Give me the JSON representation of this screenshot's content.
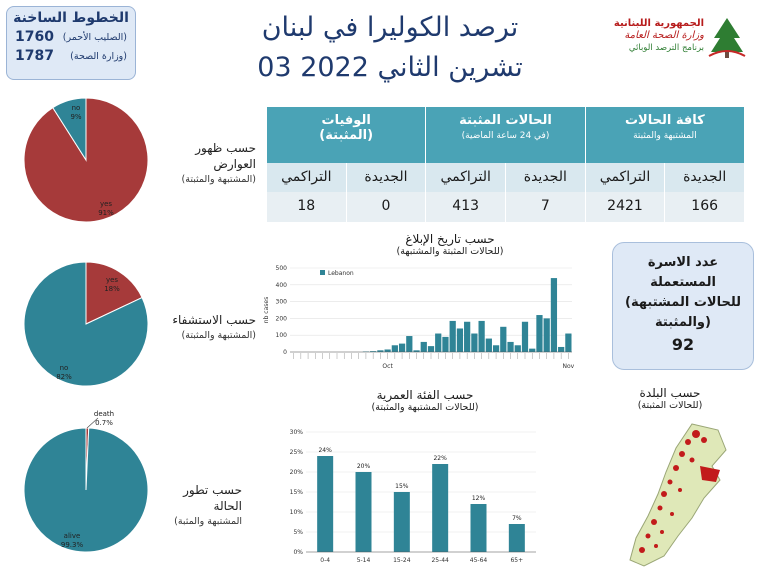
{
  "hotline": {
    "title": "الخطوط الساخنة",
    "lines": [
      {
        "number": "1760",
        "label": "(الصليب الأحمر)"
      },
      {
        "number": "1787",
        "label": "(وزارة الصحة)"
      }
    ]
  },
  "title": {
    "line1": "ترصد الكوليرا في لبنان",
    "line2": "03 تشرين الثاني 2022"
  },
  "logo": {
    "line1": "الجمهورية اللبنانية",
    "line2": "وزارة الصحة العامة",
    "line3": "برنامج الترصد الوبائي"
  },
  "summary": {
    "groups": [
      {
        "title": "كافة الحالات",
        "subtitle": "المشتبهة والمثبتة"
      },
      {
        "title": "الحالات المثبتة",
        "subtitle": "(في 24 ساعة الماضية)"
      },
      {
        "title": "الوفيات",
        "subtitle": "(المثبتة)"
      }
    ],
    "columns": [
      "الجديدة",
      "التراكمي",
      "الجديدة",
      "التراكمي",
      "الجديدة",
      "التراكمي"
    ],
    "values": [
      "166",
      "2421",
      "7",
      "413",
      "0",
      "18"
    ]
  },
  "symptoms": {
    "label1": "حسب ظهور",
    "label2": "العوارض",
    "sub": "(المشتبهة والمثبتة)",
    "slices": [
      {
        "name": "yes",
        "label": "yes",
        "pct": "91%",
        "value": 91,
        "color": "#a63a3a"
      },
      {
        "name": "no",
        "label": "no",
        "pct": "9%",
        "value": 9,
        "color": "#2f8496"
      }
    ]
  },
  "hospital": {
    "label1": "حسب الاستشفاء",
    "sub": "(المشتبهة والمثبتة)",
    "slices": [
      {
        "name": "yes",
        "label": "yes",
        "pct": "18%",
        "value": 18,
        "color": "#a63a3a"
      },
      {
        "name": "no",
        "label": "no",
        "pct": "82%",
        "value": 82,
        "color": "#2f8496"
      }
    ]
  },
  "outcome": {
    "label1": "حسب تطور",
    "label2": "الحالة",
    "sub": "(المشتبهة والمثبة",
    "slices": [
      {
        "name": "death",
        "label": "death",
        "pct": "0.7%",
        "value": 0.7,
        "color": "#a63a3a"
      },
      {
        "name": "alive",
        "label": "alive",
        "pct": "99.3%",
        "value": 99.3,
        "color": "#2f8496"
      }
    ]
  },
  "family": {
    "t1": "عدد الاسرة",
    "t2": "المستعملة",
    "t3": "(للحالات المشتبهة",
    "t4": "والمثبتة)",
    "count": "92"
  },
  "map_label": {
    "title": "حسب البلدة",
    "sub": "(للحالات المثبتة)"
  },
  "chart_data": [
    {
      "type": "bar",
      "title": "حسب تاريخ الإبلاغ",
      "subtitle": "(للحالات المثبتة والمشتبهة)",
      "ylabel": "nb cases",
      "legend": "Lebanon",
      "ylim": [
        0,
        500
      ],
      "yticks": [
        0,
        100,
        200,
        300,
        400,
        500
      ],
      "xtick_labels": {
        "Oct": 13,
        "Nov": 38
      },
      "values": [
        0,
        0,
        0,
        0,
        0,
        0,
        0,
        0,
        0,
        0,
        3,
        5,
        10,
        15,
        40,
        50,
        95,
        10,
        60,
        35,
        110,
        90,
        185,
        140,
        180,
        110,
        185,
        80,
        40,
        150,
        60,
        40,
        180,
        20,
        220,
        200,
        440,
        30,
        110
      ]
    },
    {
      "type": "bar",
      "title": "حسب الفئة العمرية",
      "subtitle": "(للحالات المشتبهة والمثبتة)",
      "ylim": [
        0,
        30
      ],
      "yticks": [
        "0%",
        "5%",
        "10%",
        "15%",
        "20%",
        "25%",
        "30%"
      ],
      "categories": [
        "0-4",
        "5-14",
        "15-24",
        "25-44",
        "45-64",
        "65+"
      ],
      "values": [
        24,
        20,
        15,
        22,
        12,
        7
      ],
      "labels": [
        "24%",
        "20%",
        "15%",
        "22%",
        "12%",
        "7%"
      ]
    }
  ],
  "colors": {
    "accent": "#4aa3b6",
    "dark": "#1f3a6e",
    "red": "#a63a3a",
    "teal": "#2f8496"
  }
}
